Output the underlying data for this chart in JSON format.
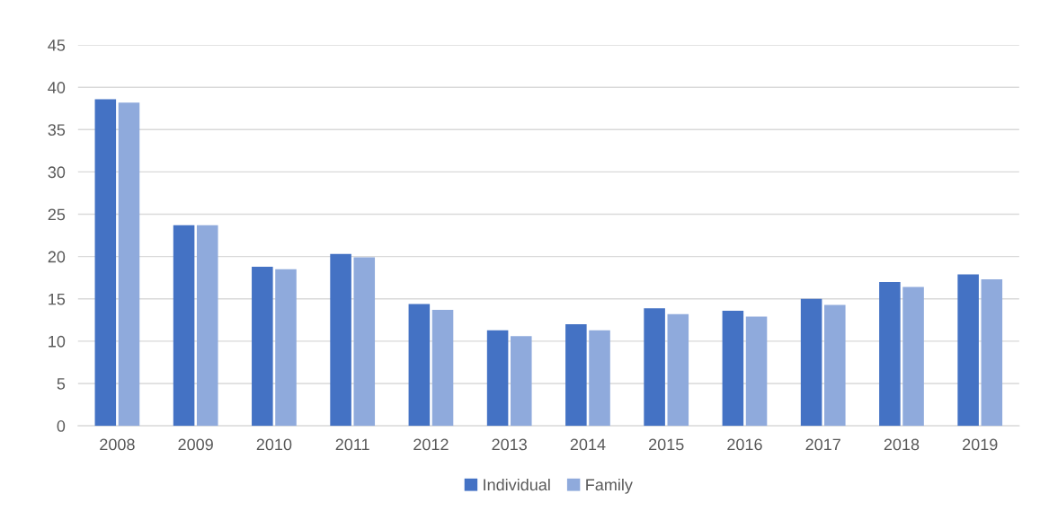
{
  "chart_data": {
    "type": "bar",
    "categories": [
      "2008",
      "2009",
      "2010",
      "2011",
      "2012",
      "2013",
      "2014",
      "2015",
      "2016",
      "2017",
      "2018",
      "2019"
    ],
    "series": [
      {
        "name": "Individual",
        "color": "#4472c4",
        "values": [
          38.6,
          23.7,
          18.8,
          20.3,
          14.4,
          11.3,
          12.0,
          13.9,
          13.6,
          15.0,
          17.0,
          17.9
        ]
      },
      {
        "name": "Family",
        "color": "#8faadc",
        "values": [
          38.2,
          23.7,
          18.5,
          19.9,
          13.7,
          10.6,
          11.3,
          13.2,
          12.9,
          14.3,
          16.4,
          17.3
        ]
      }
    ],
    "ylim": [
      0,
      45
    ],
    "yticks": [
      0,
      5,
      10,
      15,
      20,
      25,
      30,
      35,
      40,
      45
    ],
    "grid": "y",
    "legend": "bottom"
  }
}
